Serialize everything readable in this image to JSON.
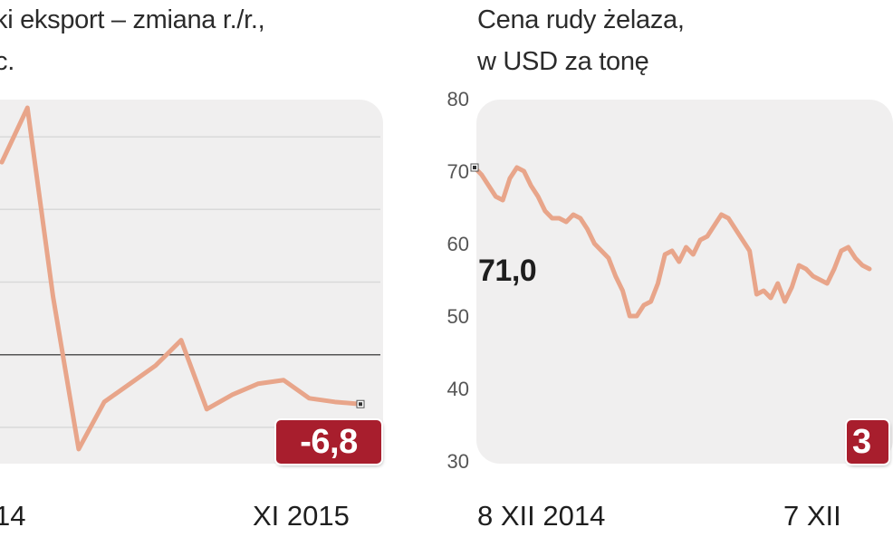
{
  "chart_data": [
    {
      "type": "line",
      "title_lines": [
        "ki eksport – zmiana r./r.,",
        "c."
      ],
      "x_tick_labels": [
        "14",
        "XI 2015"
      ],
      "value_label": "-6,8",
      "line_color": "#e8a58a",
      "badge_color": "#a81e2d",
      "grid": true,
      "reference_line_value": 0,
      "ylim": [
        -15,
        35
      ],
      "series": [
        {
          "values": [
            26.5,
            34.0,
            8.0,
            -13.0,
            -6.5,
            -4.0,
            -1.5,
            2.0,
            -7.5,
            -5.5,
            -4.0,
            -3.5,
            -6.0,
            -6.5,
            -6.8
          ]
        }
      ]
    },
    {
      "type": "line",
      "title_lines": [
        "Cena rudy żelaza,",
        "w USD za tonę"
      ],
      "y_ticks": [
        "80",
        "70",
        "60",
        "50",
        "40",
        "30"
      ],
      "ylim": [
        30,
        80
      ],
      "x_tick_labels": [
        "8 XII 2014",
        "7 XII"
      ],
      "start_label": "71,0",
      "end_badge_visible": "3",
      "line_color": "#e8a58a",
      "badge_color": "#a81e2d",
      "grid": false,
      "series": [
        {
          "values": [
            71.0,
            70.0,
            68.5,
            67.0,
            66.5,
            69.5,
            71.0,
            70.5,
            68.5,
            67.0,
            65.0,
            64.0,
            64.0,
            63.5,
            64.5,
            64.0,
            62.5,
            60.5,
            59.5,
            58.5,
            56.0,
            54.0,
            50.5,
            50.5,
            52.0,
            52.5,
            55.0,
            59.0,
            59.5,
            58.0,
            60.0,
            59.0,
            61.0,
            61.5,
            63.0,
            64.5,
            64.0,
            62.5,
            61.0,
            59.5,
            53.5,
            54.0,
            53.0,
            55.0,
            52.5,
            54.5,
            57.5,
            57.0,
            56.0,
            55.5,
            55.0,
            57.0,
            59.5,
            60.0,
            58.5,
            57.5,
            57.0
          ]
        }
      ]
    }
  ]
}
